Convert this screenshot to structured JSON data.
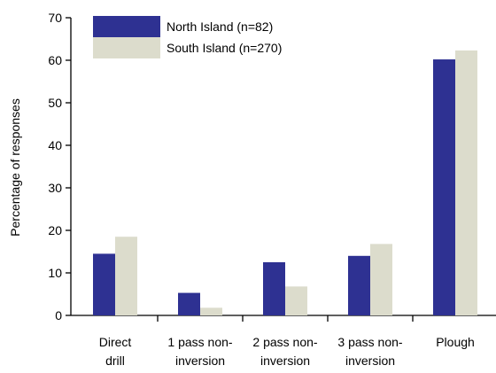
{
  "chart_data": {
    "type": "bar",
    "ylabel": "Percentage of responses",
    "ylim": [
      0,
      70
    ],
    "yticks": [
      0,
      10,
      20,
      30,
      40,
      50,
      60,
      70
    ],
    "categories": [
      [
        "Direct",
        "drill"
      ],
      [
        "1 pass non-",
        "inversion"
      ],
      [
        "2 pass non-",
        "inversion"
      ],
      [
        "3 pass non-",
        "inversion"
      ],
      [
        "Plough"
      ]
    ],
    "series": [
      {
        "name": "North Island (n=82)",
        "color": "#2e3192",
        "values": [
          14.5,
          5.3,
          12.5,
          14.0,
          60.2
        ]
      },
      {
        "name": "South Island (n=270)",
        "color": "#dcdccc",
        "values": [
          18.5,
          1.8,
          6.8,
          16.8,
          62.3
        ]
      }
    ],
    "legend": "top-left",
    "grid": false
  }
}
